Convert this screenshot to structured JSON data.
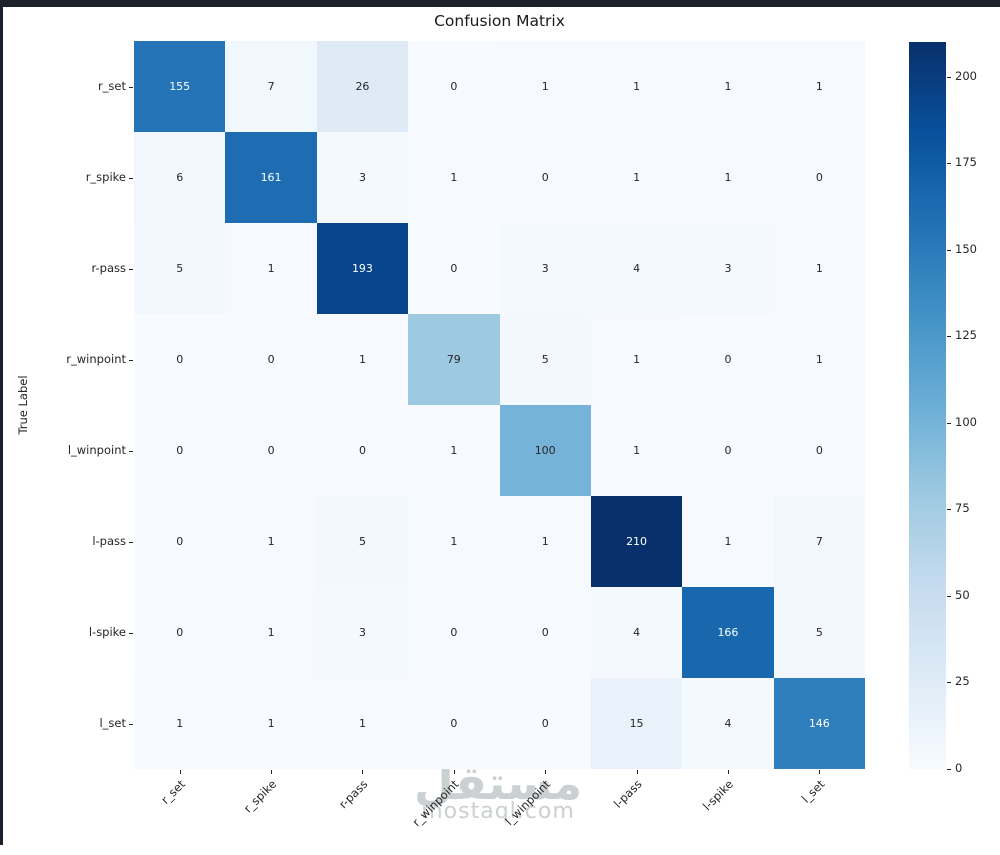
{
  "window": {
    "frame_color": "#1b212a"
  },
  "header": {
    "title": "Confusion Matrix"
  },
  "watermark": {
    "arabic": "مستقل",
    "domain": "mostaql.com"
  },
  "colors": {
    "background": "#ffffff",
    "tick_text": "#262626",
    "annot_dark": "#262626",
    "annot_light": "#ffffff",
    "blues_anchors": [
      "#f7fbff",
      "#deebf7",
      "#c6dbef",
      "#9ecae1",
      "#6baed6",
      "#4292c6",
      "#2171b5",
      "#08519c",
      "#08306b"
    ]
  },
  "chart_data": {
    "type": "heatmap",
    "title": "Confusion Matrix",
    "xlabel": "",
    "ylabel": "True Label",
    "categories": [
      "r_set",
      "r_spike",
      "r-pass",
      "r_winpoint",
      "l_winpoint",
      "l-pass",
      "l-spike",
      "l_set"
    ],
    "rows": [
      "r_set",
      "r_spike",
      "r-pass",
      "r_winpoint",
      "l_winpoint",
      "l-pass",
      "l-spike",
      "l_set"
    ],
    "matrix": [
      [
        155,
        7,
        26,
        0,
        1,
        1,
        1,
        1
      ],
      [
        6,
        161,
        3,
        1,
        0,
        1,
        1,
        0
      ],
      [
        5,
        1,
        193,
        0,
        3,
        4,
        3,
        1
      ],
      [
        0,
        0,
        1,
        79,
        5,
        1,
        0,
        1
      ],
      [
        0,
        0,
        0,
        1,
        100,
        1,
        0,
        0
      ],
      [
        0,
        1,
        5,
        1,
        1,
        210,
        1,
        7
      ],
      [
        0,
        1,
        3,
        0,
        0,
        4,
        166,
        5
      ],
      [
        1,
        1,
        1,
        0,
        0,
        15,
        4,
        146
      ]
    ],
    "vmin": 0,
    "vmax": 210,
    "colormap": "Blues",
    "colorbar_ticks": [
      0,
      25,
      50,
      75,
      100,
      125,
      150,
      175,
      200
    ],
    "legend_position": "right-colorbar",
    "grid": false,
    "annotations": true,
    "x_tick_rotation_deg": 45
  }
}
